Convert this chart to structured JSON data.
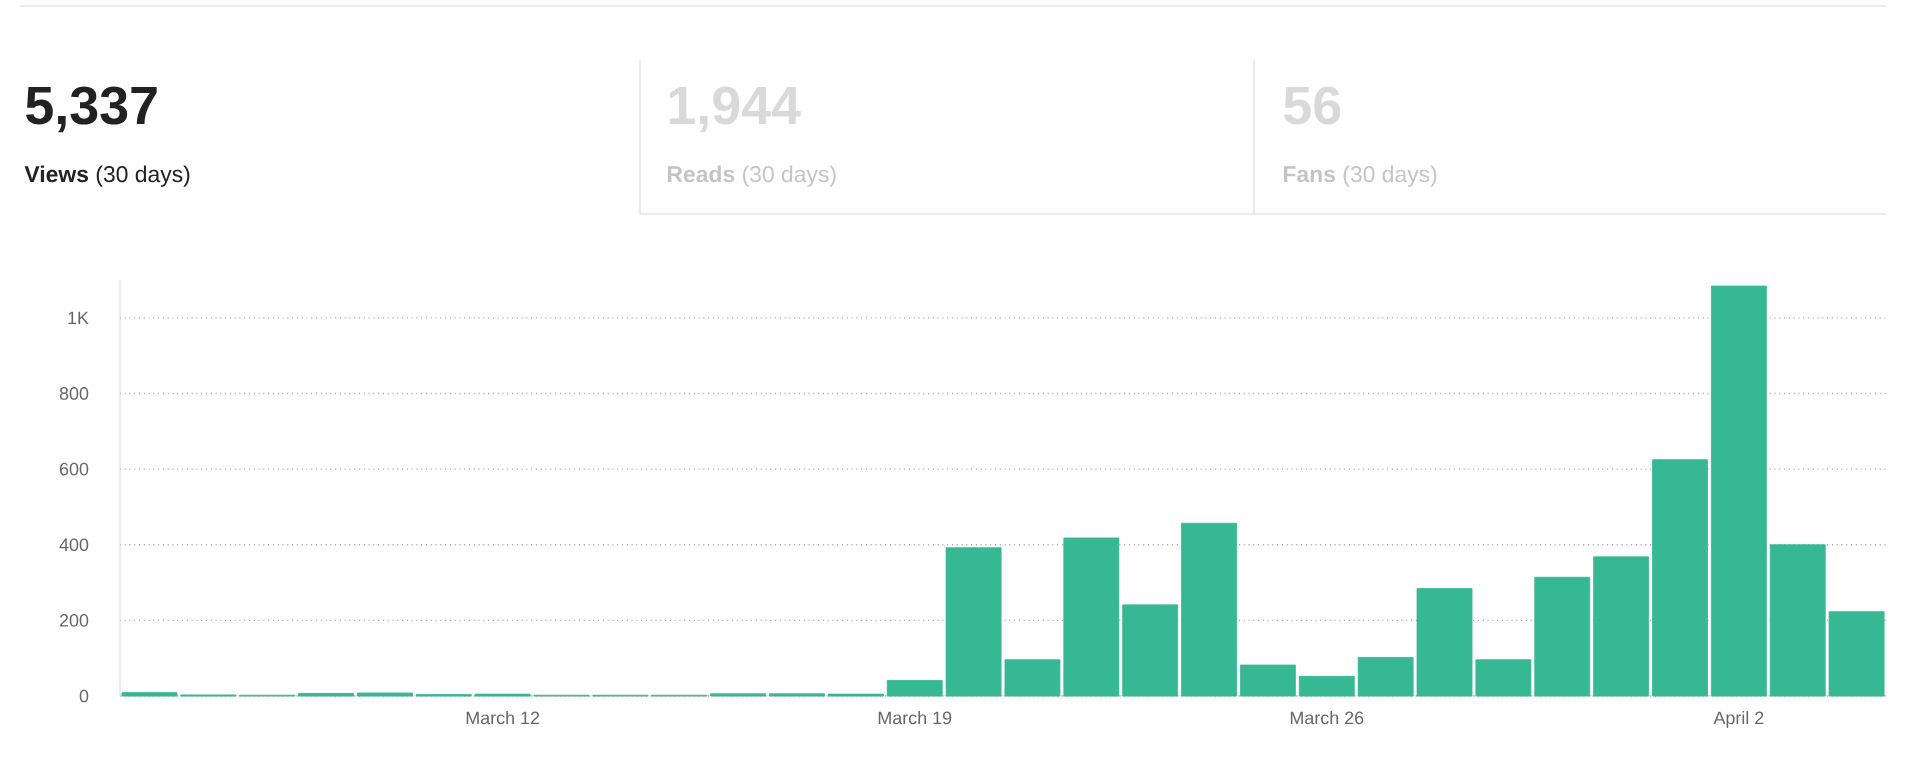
{
  "chart_data": {
    "type": "bar",
    "categories": [
      null,
      null,
      null,
      null,
      null,
      null,
      "March 12",
      null,
      null,
      null,
      null,
      null,
      null,
      "March 19",
      null,
      null,
      null,
      null,
      null,
      null,
      "March 26",
      null,
      null,
      null,
      null,
      null,
      null,
      "April 2",
      null,
      null
    ],
    "values": [
      9,
      3,
      2,
      7,
      8,
      4,
      5,
      2,
      2,
      2,
      6,
      6,
      5,
      41,
      392,
      96,
      418,
      241,
      457,
      82,
      52,
      102,
      284,
      96,
      314,
      368,
      625,
      1084,
      400,
      223
    ],
    "color": "#36b893",
    "ylim": [
      0,
      1100
    ],
    "yticks": [
      0,
      200,
      400,
      600,
      800,
      {
        "value": 1000,
        "label": "1K"
      }
    ],
    "grid": "y",
    "annotations": [
      "5,337",
      "**Views** (30 days)",
      "1,944",
      "**Reads** (30 days)",
      "56",
      "**Fans** (30 days)"
    ]
  }
}
